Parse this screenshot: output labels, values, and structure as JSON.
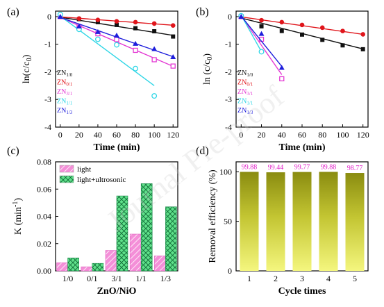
{
  "panel_labels": [
    "(a)",
    "(b)",
    "(c)",
    "(d)"
  ],
  "watermark": "Journal Pre-proof",
  "chart_data": [
    {
      "type": "scatter",
      "panel": "(a)",
      "xlabel": "Time (min)",
      "ylabel": "ln(c/c0)",
      "ylabel_main": "ln(c/c",
      "ylabel_sub": "0",
      "ylabel_close": ")",
      "xlim": [
        -5,
        125
      ],
      "ylim": [
        -4,
        0.2
      ],
      "xticks": [
        0,
        20,
        40,
        60,
        80,
        100,
        120
      ],
      "yticks": [
        -4,
        -3,
        -2,
        -1,
        0
      ],
      "legend_position": "left-middle",
      "series": [
        {
          "name": "ZN1/0",
          "main": "ZN",
          "sub": "1/0",
          "color": "#111111",
          "marker": "square",
          "x": [
            0,
            20,
            40,
            60,
            80,
            100,
            120
          ],
          "y": [
            0,
            -0.09,
            -0.2,
            -0.3,
            -0.42,
            -0.53,
            -0.72
          ],
          "fit": [
            [
              0,
              -0.02
            ],
            [
              120,
              -0.68
            ]
          ]
        },
        {
          "name": "ZN0/1",
          "main": "ZN",
          "sub": "0/1",
          "color": "#e0151b",
          "marker": "circle",
          "x": [
            0,
            20,
            40,
            60,
            80,
            100,
            120
          ],
          "y": [
            0,
            -0.07,
            -0.12,
            -0.17,
            -0.2,
            -0.25,
            -0.32
          ],
          "fit": [
            [
              0,
              -0.01
            ],
            [
              120,
              -0.31
            ]
          ]
        },
        {
          "name": "ZN3/1",
          "main": "ZN",
          "sub": "3/1",
          "color": "#e43bd4",
          "marker": "square-open",
          "x": [
            0,
            20,
            40,
            60,
            80,
            100,
            120
          ],
          "y": [
            0,
            -0.38,
            -0.62,
            -0.83,
            -1.22,
            -1.56,
            -1.79
          ],
          "fit": [
            [
              0,
              -0.03
            ],
            [
              120,
              -1.8
            ]
          ]
        },
        {
          "name": "ZN1/1",
          "main": "ZN",
          "sub": "1/1",
          "color": "#2fd6e6",
          "marker": "circle-open",
          "x": [
            0,
            20,
            40,
            60,
            80,
            100
          ],
          "y": [
            0.08,
            -0.46,
            -0.82,
            -1.02,
            -1.88,
            -2.87
          ],
          "fit": [
            [
              0,
              0.02
            ],
            [
              100,
              -2.5
            ]
          ]
        },
        {
          "name": "ZN1/3",
          "main": "ZN",
          "sub": "1/3",
          "color": "#1e1edc",
          "marker": "triangle",
          "x": [
            0,
            20,
            40,
            60,
            80,
            100,
            120
          ],
          "y": [
            0,
            -0.35,
            -0.55,
            -0.68,
            -0.98,
            -1.17,
            -1.46
          ],
          "fit": [
            [
              0,
              -0.03
            ],
            [
              120,
              -1.45
            ]
          ]
        }
      ]
    },
    {
      "type": "scatter",
      "panel": "(b)",
      "xlabel": "Time (min)",
      "ylabel": "ln (c/c0)",
      "ylabel_main": "ln (c/c",
      "ylabel_sub": "0",
      "ylabel_close": ")",
      "xlim": [
        -5,
        125
      ],
      "ylim": [
        -4,
        0.2
      ],
      "xticks": [
        0,
        20,
        40,
        60,
        80,
        100,
        120
      ],
      "yticks": [
        -4,
        -3,
        -2,
        -1,
        0
      ],
      "legend_position": "left-middle",
      "series": [
        {
          "name": "ZN1/0",
          "main": "ZN",
          "sub": "1/0",
          "color": "#111111",
          "marker": "square",
          "x": [
            0,
            20,
            40,
            60,
            80,
            100,
            120
          ],
          "y": [
            0,
            -0.35,
            -0.52,
            -0.65,
            -0.84,
            -1.04,
            -1.18
          ],
          "fit": [
            [
              0,
              -0.05
            ],
            [
              120,
              -1.17
            ]
          ]
        },
        {
          "name": "ZN0/1",
          "main": "ZN",
          "sub": "0/1",
          "color": "#e0151b",
          "marker": "circle",
          "x": [
            0,
            20,
            40,
            60,
            80,
            100,
            120
          ],
          "y": [
            0,
            -0.13,
            -0.2,
            -0.3,
            -0.4,
            -0.52,
            -0.64
          ],
          "fit": [
            [
              0,
              -0.01
            ],
            [
              120,
              -0.64
            ]
          ]
        },
        {
          "name": "ZN3/1",
          "main": "ZN",
          "sub": "3/1",
          "color": "#e43bd4",
          "marker": "square-open",
          "x": [
            0,
            20,
            40
          ],
          "y": [
            0,
            -0.82,
            -2.25
          ],
          "fit": [
            [
              0,
              0.02
            ],
            [
              40,
              -2.1
            ]
          ]
        },
        {
          "name": "ZN1/1",
          "main": "ZN",
          "sub": "1/1",
          "color": "#2fd6e6",
          "marker": "circle-open",
          "x": [
            0,
            20
          ],
          "y": [
            0.03,
            -1.27
          ],
          "fit": [
            [
              0,
              0.05
            ],
            [
              20,
              -1.27
            ]
          ]
        },
        {
          "name": "ZN1/3",
          "main": "ZN",
          "sub": "1/3",
          "color": "#1e1edc",
          "marker": "triangle",
          "x": [
            0,
            20,
            40
          ],
          "y": [
            0,
            -0.62,
            -1.85
          ],
          "fit": [
            [
              0,
              0.02
            ],
            [
              40,
              -1.8
            ]
          ]
        }
      ]
    },
    {
      "type": "bar",
      "panel": "(c)",
      "xlabel": "ZnO/NiO",
      "ylabel": "K (min-1)",
      "ylabel_main": "K (min",
      "ylabel_sup": "-1",
      "ylabel_close": ")",
      "categories": [
        "1/0",
        "0/1",
        "3/1",
        "1/1",
        "1/3"
      ],
      "ylim": [
        0,
        0.08
      ],
      "yticks": [
        0.0,
        0.02,
        0.04,
        0.06,
        0.08
      ],
      "ytick_labels": [
        "0.00",
        "0.02",
        "0.04",
        "0.06",
        "0.08"
      ],
      "legend_position": "top-left",
      "series": [
        {
          "name": "light",
          "color": "#f48fd8",
          "pattern": "hatch",
          "values": [
            0.006,
            0.003,
            0.015,
            0.027,
            0.011
          ]
        },
        {
          "name": "light+ultrosonic",
          "color": "#5fe08a",
          "pattern": "crosshatch",
          "values": [
            0.0095,
            0.0055,
            0.055,
            0.064,
            0.047
          ]
        }
      ]
    },
    {
      "type": "bar",
      "panel": "(d)",
      "xlabel": "Cycle times",
      "ylabel": "Removal efficiency (%)",
      "categories": [
        "1",
        "2",
        "3",
        "4",
        "5"
      ],
      "ylim": [
        0,
        110
      ],
      "yticks": [
        0,
        50,
        100
      ],
      "values": [
        99.88,
        99.44,
        99.77,
        99.88,
        98.77
      ],
      "data_labels": [
        "99.88",
        "99.44",
        "99.77",
        "99.88",
        "98.77"
      ],
      "label_color": "#e020c8",
      "gradient": [
        "#8a8c10",
        "#f2f47a"
      ]
    }
  ]
}
